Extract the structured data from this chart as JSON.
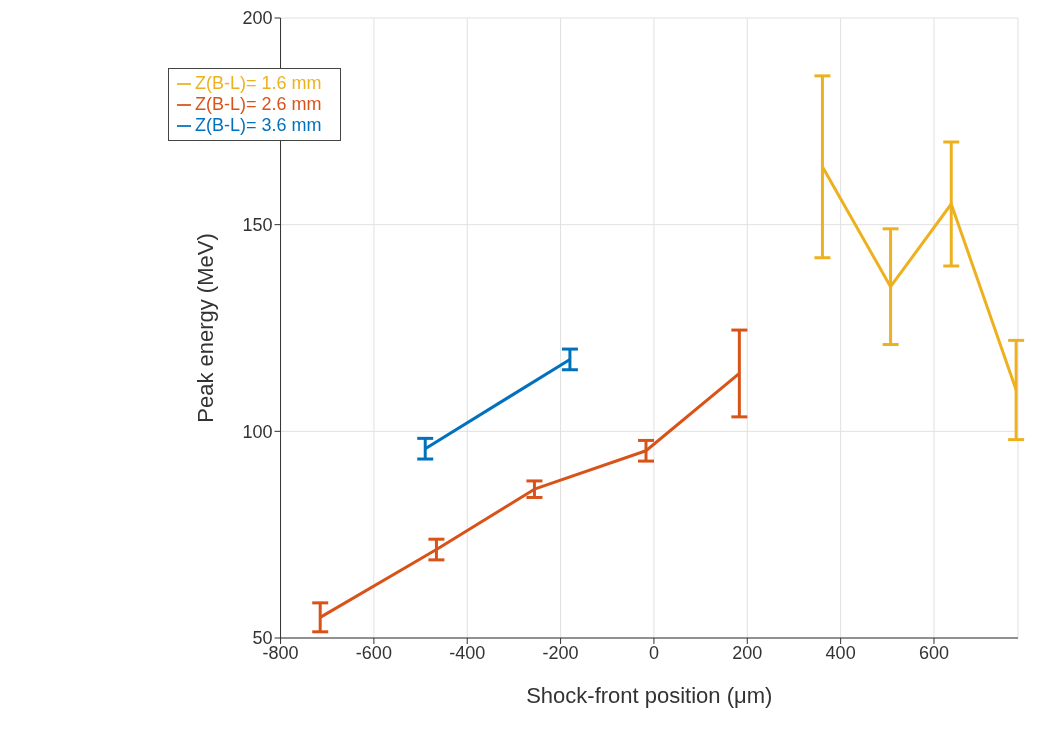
{
  "chart_data": {
    "type": "line",
    "xlabel": "Shock-front position (μm)",
    "ylabel": "Peak energy (MeV)",
    "xlim": [
      -800,
      780
    ],
    "xticks": [
      -800,
      -600,
      -400,
      -200,
      0,
      200,
      400,
      600
    ],
    "ylim": [
      50,
      200
    ],
    "yticks": [
      50,
      100,
      150,
      200
    ],
    "grid": true,
    "legend": "top left",
    "marker": "none",
    "line_style": "solid",
    "series": [
      {
        "name": "Z(B-L)= 3.6 mm",
        "color": "#0072bd",
        "x": [
          -490,
          -180
        ],
        "values": [
          95.8,
          117.4
        ],
        "errors": [
          2.5,
          2.5
        ]
      },
      {
        "name": "Z(B-L)= 2.6 mm",
        "color": "#d95319",
        "x": [
          -715,
          -466,
          -256,
          -17,
          183
        ],
        "values": [
          55,
          71.4,
          86,
          95.3,
          114
        ],
        "errors": [
          3.5,
          2.5,
          2,
          2.5,
          10.5
        ]
      },
      {
        "name": "Z(B-L)= 1.6 mm",
        "color": "#edb120",
        "x": [
          361,
          507,
          637,
          776
        ],
        "values": [
          164,
          135,
          155,
          110
        ],
        "errors": [
          22,
          14,
          15,
          12
        ]
      }
    ]
  }
}
